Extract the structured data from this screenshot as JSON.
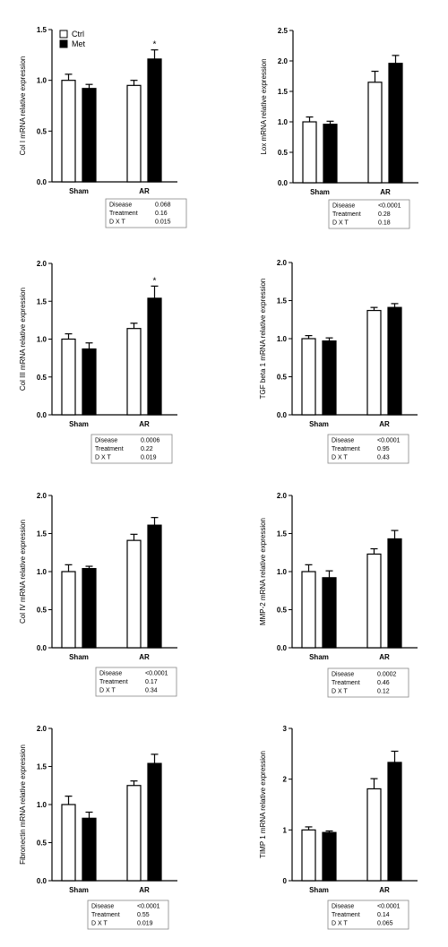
{
  "legend": {
    "items": [
      {
        "label": "Ctrl",
        "fill": "#ffffff"
      },
      {
        "label": "Met",
        "fill": "#000000"
      }
    ]
  },
  "stat_row_labels": [
    "Disease",
    "Treatment",
    "D X T"
  ],
  "chart_data": [
    {
      "type": "bar",
      "categories": [
        "Sham",
        "AR"
      ],
      "ylabel": "Col I mRNA relative expression",
      "ylim": [
        0,
        1.5
      ],
      "yticks": [
        "0.0",
        "0.5",
        "1.0",
        "1.5"
      ],
      "series": [
        {
          "name": "Ctrl",
          "values": [
            1.0,
            0.95
          ],
          "errors": [
            0.06,
            0.05
          ]
        },
        {
          "name": "Met",
          "values": [
            0.92,
            1.21
          ],
          "errors": [
            0.04,
            0.09
          ]
        }
      ],
      "annotations": [
        {
          "series": 1,
          "category": 1,
          "text": "*"
        }
      ],
      "stats": [
        "0.068",
        "0.16",
        "0.015"
      ]
    },
    {
      "type": "bar",
      "categories": [
        "Sham",
        "AR"
      ],
      "ylabel": "Lox mRNA relative expression",
      "ylim": [
        0,
        2.5
      ],
      "yticks": [
        "0.0",
        "0.5",
        "1.0",
        "1.5",
        "2.0",
        "2.5"
      ],
      "series": [
        {
          "name": "Ctrl",
          "values": [
            1.0,
            1.65
          ],
          "errors": [
            0.08,
            0.18
          ]
        },
        {
          "name": "Met",
          "values": [
            0.96,
            1.96
          ],
          "errors": [
            0.05,
            0.13
          ]
        }
      ],
      "annotations": [],
      "stats": [
        "<0.0001",
        "0.28",
        "0.18"
      ]
    },
    {
      "type": "bar",
      "categories": [
        "Sham",
        "AR"
      ],
      "ylabel": "Col III mRNA relative expression",
      "ylim": [
        0,
        2.0
      ],
      "yticks": [
        "0.0",
        "0.5",
        "1.0",
        "1.5",
        "2.0"
      ],
      "series": [
        {
          "name": "Ctrl",
          "values": [
            1.0,
            1.14
          ],
          "errors": [
            0.07,
            0.07
          ]
        },
        {
          "name": "Met",
          "values": [
            0.87,
            1.54
          ],
          "errors": [
            0.08,
            0.16
          ]
        }
      ],
      "annotations": [
        {
          "series": 1,
          "category": 1,
          "text": "*"
        }
      ],
      "stats": [
        "0.0006",
        "0.22",
        "0.019"
      ]
    },
    {
      "type": "bar",
      "categories": [
        "Sham",
        "AR"
      ],
      "ylabel": "TGF beta 1 mRNA relative expression",
      "ylim": [
        0,
        2.0
      ],
      "yticks": [
        "0.0",
        "0.5",
        "1.0",
        "1.5",
        "2.0"
      ],
      "series": [
        {
          "name": "Ctrl",
          "values": [
            1.0,
            1.37
          ],
          "errors": [
            0.04,
            0.04
          ]
        },
        {
          "name": "Met",
          "values": [
            0.97,
            1.41
          ],
          "errors": [
            0.04,
            0.05
          ]
        }
      ],
      "annotations": [],
      "stats": [
        "<0.0001",
        "0.95",
        "0.43"
      ]
    },
    {
      "type": "bar",
      "categories": [
        "Sham",
        "AR"
      ],
      "ylabel": "Col IV mRNA relative expression",
      "ylim": [
        0,
        2.0
      ],
      "yticks": [
        "0.0",
        "0.5",
        "1.0",
        "1.5",
        "2.0"
      ],
      "series": [
        {
          "name": "Ctrl",
          "values": [
            1.0,
            1.41
          ],
          "errors": [
            0.09,
            0.08
          ]
        },
        {
          "name": "Met",
          "values": [
            1.04,
            1.61
          ],
          "errors": [
            0.03,
            0.1
          ]
        }
      ],
      "annotations": [],
      "stats": [
        "<0.0001",
        "0.17",
        "0.34"
      ]
    },
    {
      "type": "bar",
      "categories": [
        "Sham",
        "AR"
      ],
      "ylabel": "MMP-2 mRNA relative expression",
      "ylim": [
        0,
        2.0
      ],
      "yticks": [
        "0.0",
        "0.5",
        "1.0",
        "1.5",
        "2.0"
      ],
      "series": [
        {
          "name": "Ctrl",
          "values": [
            1.0,
            1.23
          ],
          "errors": [
            0.09,
            0.07
          ]
        },
        {
          "name": "Met",
          "values": [
            0.92,
            1.43
          ],
          "errors": [
            0.09,
            0.11
          ]
        }
      ],
      "annotations": [],
      "stats": [
        "0.0002",
        "0.46",
        "0.12"
      ]
    },
    {
      "type": "bar",
      "categories": [
        "Sham",
        "AR"
      ],
      "ylabel": "Fibronectin mRNA relative expression",
      "ylim": [
        0,
        2.0
      ],
      "yticks": [
        "0.0",
        "0.5",
        "1.0",
        "1.5",
        "2.0"
      ],
      "series": [
        {
          "name": "Ctrl",
          "values": [
            1.0,
            1.25
          ],
          "errors": [
            0.11,
            0.06
          ]
        },
        {
          "name": "Met",
          "values": [
            0.82,
            1.54
          ],
          "errors": [
            0.08,
            0.12
          ]
        }
      ],
      "annotations": [],
      "stats": [
        "<0.0001",
        "0.55",
        "0.019"
      ]
    },
    {
      "type": "bar",
      "categories": [
        "Sham",
        "AR"
      ],
      "ylabel": "TIMP 1 mRNA relative expression",
      "ylim": [
        0,
        3
      ],
      "yticks": [
        "0",
        "1",
        "2",
        "3"
      ],
      "series": [
        {
          "name": "Ctrl",
          "values": [
            1.0,
            1.81
          ],
          "errors": [
            0.06,
            0.2
          ]
        },
        {
          "name": "Met",
          "values": [
            0.95,
            2.33
          ],
          "errors": [
            0.03,
            0.22
          ]
        }
      ],
      "annotations": [],
      "stats": [
        "<0.0001",
        "0.14",
        "0.065"
      ]
    }
  ]
}
